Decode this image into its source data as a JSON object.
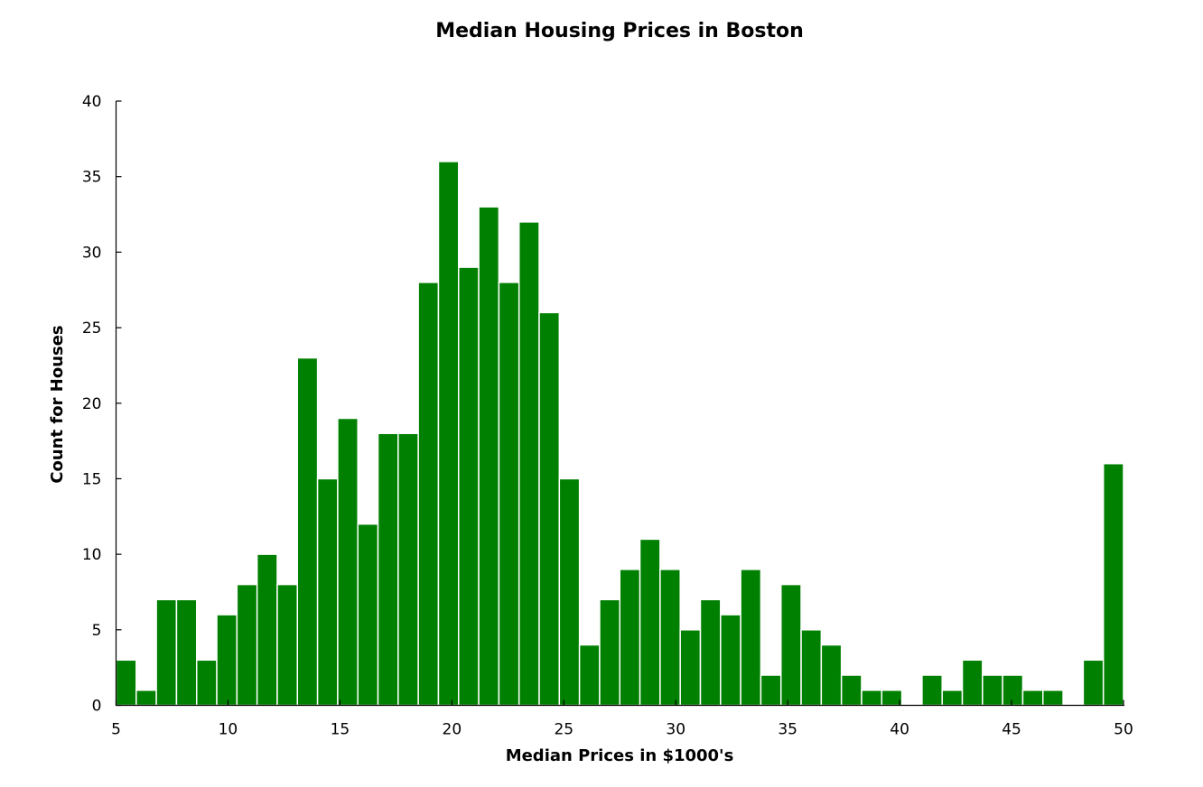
{
  "chart_data": {
    "type": "bar",
    "title": "Median Housing Prices in Boston",
    "xlabel": "Median Prices in $1000's",
    "ylabel": "Count for Houses",
    "xlim": [
      5,
      50
    ],
    "ylim": [
      0,
      40
    ],
    "xticks": [
      "5",
      "10",
      "15",
      "20",
      "25",
      "30",
      "35",
      "40",
      "45",
      "50"
    ],
    "yticks": [
      "0",
      "5",
      "10",
      "15",
      "20",
      "25",
      "30",
      "35",
      "40"
    ],
    "bin_width": 0.9,
    "bins_start": [
      5.0,
      5.9,
      6.8,
      7.7,
      8.6,
      9.5,
      10.4,
      11.3,
      12.2,
      13.1,
      14.0,
      14.9,
      15.8,
      16.7,
      17.6,
      18.5,
      19.4,
      20.3,
      21.2,
      22.1,
      23.0,
      23.9,
      24.8,
      25.7,
      26.6,
      27.5,
      28.4,
      29.3,
      30.2,
      31.1,
      32.0,
      32.9,
      33.8,
      34.7,
      35.6,
      36.5,
      37.4,
      38.3,
      39.2,
      40.1,
      41.0,
      41.9,
      42.8,
      43.7,
      44.6,
      45.5,
      46.4,
      47.3,
      48.2,
      49.1
    ],
    "values": [
      3,
      1,
      7,
      7,
      3,
      6,
      8,
      10,
      8,
      23,
      15,
      19,
      12,
      18,
      18,
      28,
      36,
      29,
      33,
      28,
      32,
      26,
      15,
      4,
      7,
      9,
      11,
      9,
      5,
      7,
      6,
      9,
      2,
      8,
      5,
      4,
      2,
      1,
      1,
      0,
      2,
      1,
      3,
      2,
      2,
      1,
      1,
      0,
      3,
      16
    ],
    "bar_color": "#008000",
    "grid": false
  }
}
